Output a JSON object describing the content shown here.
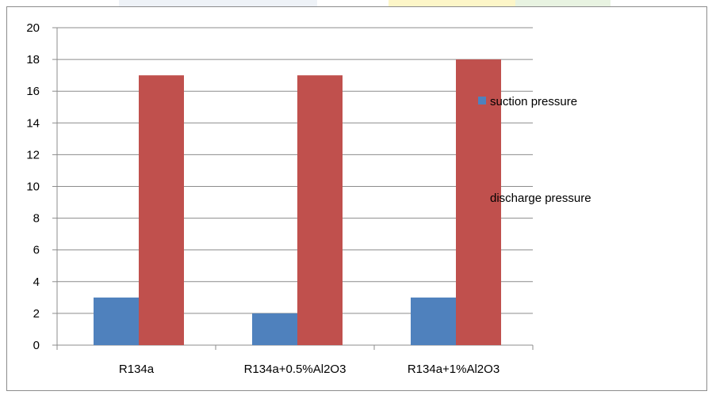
{
  "chart_data": {
    "type": "bar",
    "categories": [
      "R134a",
      "R134a+0.5%Al2O3",
      "R134a+1%Al2O3"
    ],
    "series": [
      {
        "name": "suction pressure",
        "values": [
          3,
          2,
          3
        ],
        "color": "#4f81bd"
      },
      {
        "name": "discharge pressure",
        "values": [
          17,
          17,
          18
        ],
        "color": "#c0504d"
      }
    ],
    "ylim": [
      0,
      20
    ],
    "yticks": [
      0,
      2,
      4,
      6,
      8,
      10,
      12,
      14,
      16,
      18,
      20
    ],
    "grid": true,
    "legend": "right",
    "title": "",
    "xlabel": "",
    "ylabel": ""
  }
}
